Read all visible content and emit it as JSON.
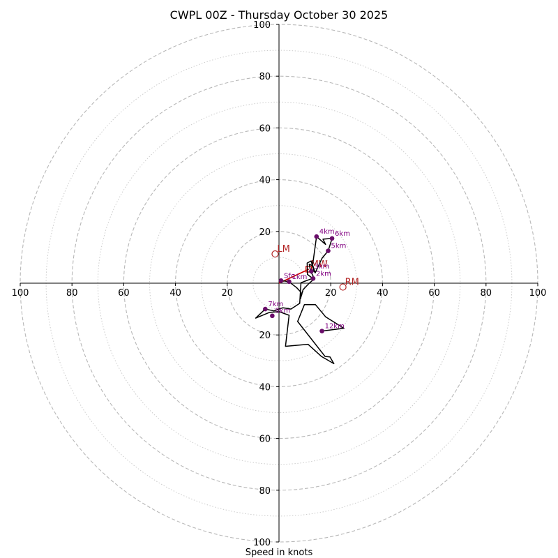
{
  "chart_data": {
    "type": "hodograph",
    "title": "CWPL 00Z - Thursday October 30 2025",
    "xlabel": "Speed in knots",
    "axis_range": [
      -100,
      100
    ],
    "ring_major": [
      20,
      40,
      60,
      80,
      100
    ],
    "ring_minor": [
      10,
      30,
      50,
      70,
      90
    ],
    "tick_labels": {
      "x": [
        "100",
        "80",
        "60",
        "40",
        "20",
        "20",
        "40",
        "60",
        "80",
        "100"
      ],
      "y": [
        "100",
        "80",
        "60",
        "40",
        "20",
        "20",
        "40",
        "60",
        "80",
        "100"
      ]
    },
    "x_tick_values": [
      -100,
      -80,
      -60,
      -40,
      -20,
      20,
      40,
      60,
      80,
      100
    ],
    "y_tick_values": [
      100,
      80,
      60,
      40,
      20,
      -20,
      -40,
      -60,
      -80,
      -100
    ],
    "trace": [
      [
        0.8,
        1.0
      ],
      [
        3.8,
        0.6
      ],
      [
        6.8,
        -1.7
      ],
      [
        8.5,
        -3.5
      ],
      [
        8.3,
        -6.0
      ],
      [
        9.3,
        -2.5
      ],
      [
        11.6,
        -0.1
      ],
      [
        13.4,
        1.5
      ],
      [
        11.0,
        3.4
      ],
      [
        10.9,
        7.8
      ],
      [
        12.4,
        8.6
      ],
      [
        13.6,
        4.4
      ],
      [
        13.0,
        7.0
      ],
      [
        14.5,
        18.0
      ],
      [
        18.0,
        15.0
      ],
      [
        17.0,
        17.0
      ],
      [
        20.5,
        17.3
      ],
      [
        19.0,
        12.5
      ],
      [
        16.6,
        9.6
      ],
      [
        14.0,
        4.0
      ],
      [
        13.1,
        6.7
      ],
      [
        11.7,
        7.3
      ],
      [
        12.2,
        4.6
      ],
      [
        13.2,
        2.7
      ],
      [
        12.8,
        1.8
      ],
      [
        8.5,
        0.2
      ],
      [
        8.0,
        -7.8
      ],
      [
        4.6,
        -10.0
      ],
      [
        1.5,
        -9.5
      ],
      [
        -2.0,
        -10.7
      ],
      [
        -5.3,
        -10.0
      ],
      [
        -9.0,
        -13.5
      ],
      [
        -3.7,
        -11.3
      ],
      [
        0.0,
        -11.0
      ],
      [
        3.9,
        -12.4
      ],
      [
        2.5,
        -24.4
      ],
      [
        11.2,
        -23.6
      ],
      [
        16.4,
        -28.3
      ],
      [
        21.2,
        -31.1
      ],
      [
        19.7,
        -28.5
      ],
      [
        17.8,
        -28.3
      ],
      [
        7.2,
        -14.8
      ],
      [
        9.8,
        -8.3
      ],
      [
        14.1,
        -8.3
      ],
      [
        18.0,
        -13.0
      ],
      [
        25.1,
        -17.4
      ],
      [
        16.6,
        -18.5
      ]
    ],
    "height_points": [
      {
        "label": "Sfc",
        "u": 0.8,
        "v": 1.0
      },
      {
        "label": "1km",
        "u": 3.9,
        "v": 0.6
      },
      {
        "label": "2km",
        "u": 13.2,
        "v": 1.8
      },
      {
        "label": "3km",
        "u": 12.5,
        "v": 4.6
      },
      {
        "label": "4km",
        "u": 14.5,
        "v": 18.0
      },
      {
        "label": "5km",
        "u": 19.0,
        "v": 12.5
      },
      {
        "label": "6km",
        "u": 20.5,
        "v": 17.3
      },
      {
        "label": "7km",
        "u": -5.3,
        "v": -10.0
      },
      {
        "label": "8km",
        "u": -2.6,
        "v": -12.6
      },
      {
        "label": "12km",
        "u": 16.6,
        "v": -18.5
      }
    ],
    "storm_motion": [
      {
        "label": "LM",
        "u": -1.5,
        "v": 11.3
      },
      {
        "label": "RM",
        "u": 24.7,
        "v": -1.5
      }
    ],
    "mean_wind": {
      "label": "MW",
      "u": 11.5,
      "v": 5.4
    },
    "shear_vector": [
      [
        0,
        0
      ],
      [
        11.5,
        5.4
      ]
    ]
  }
}
